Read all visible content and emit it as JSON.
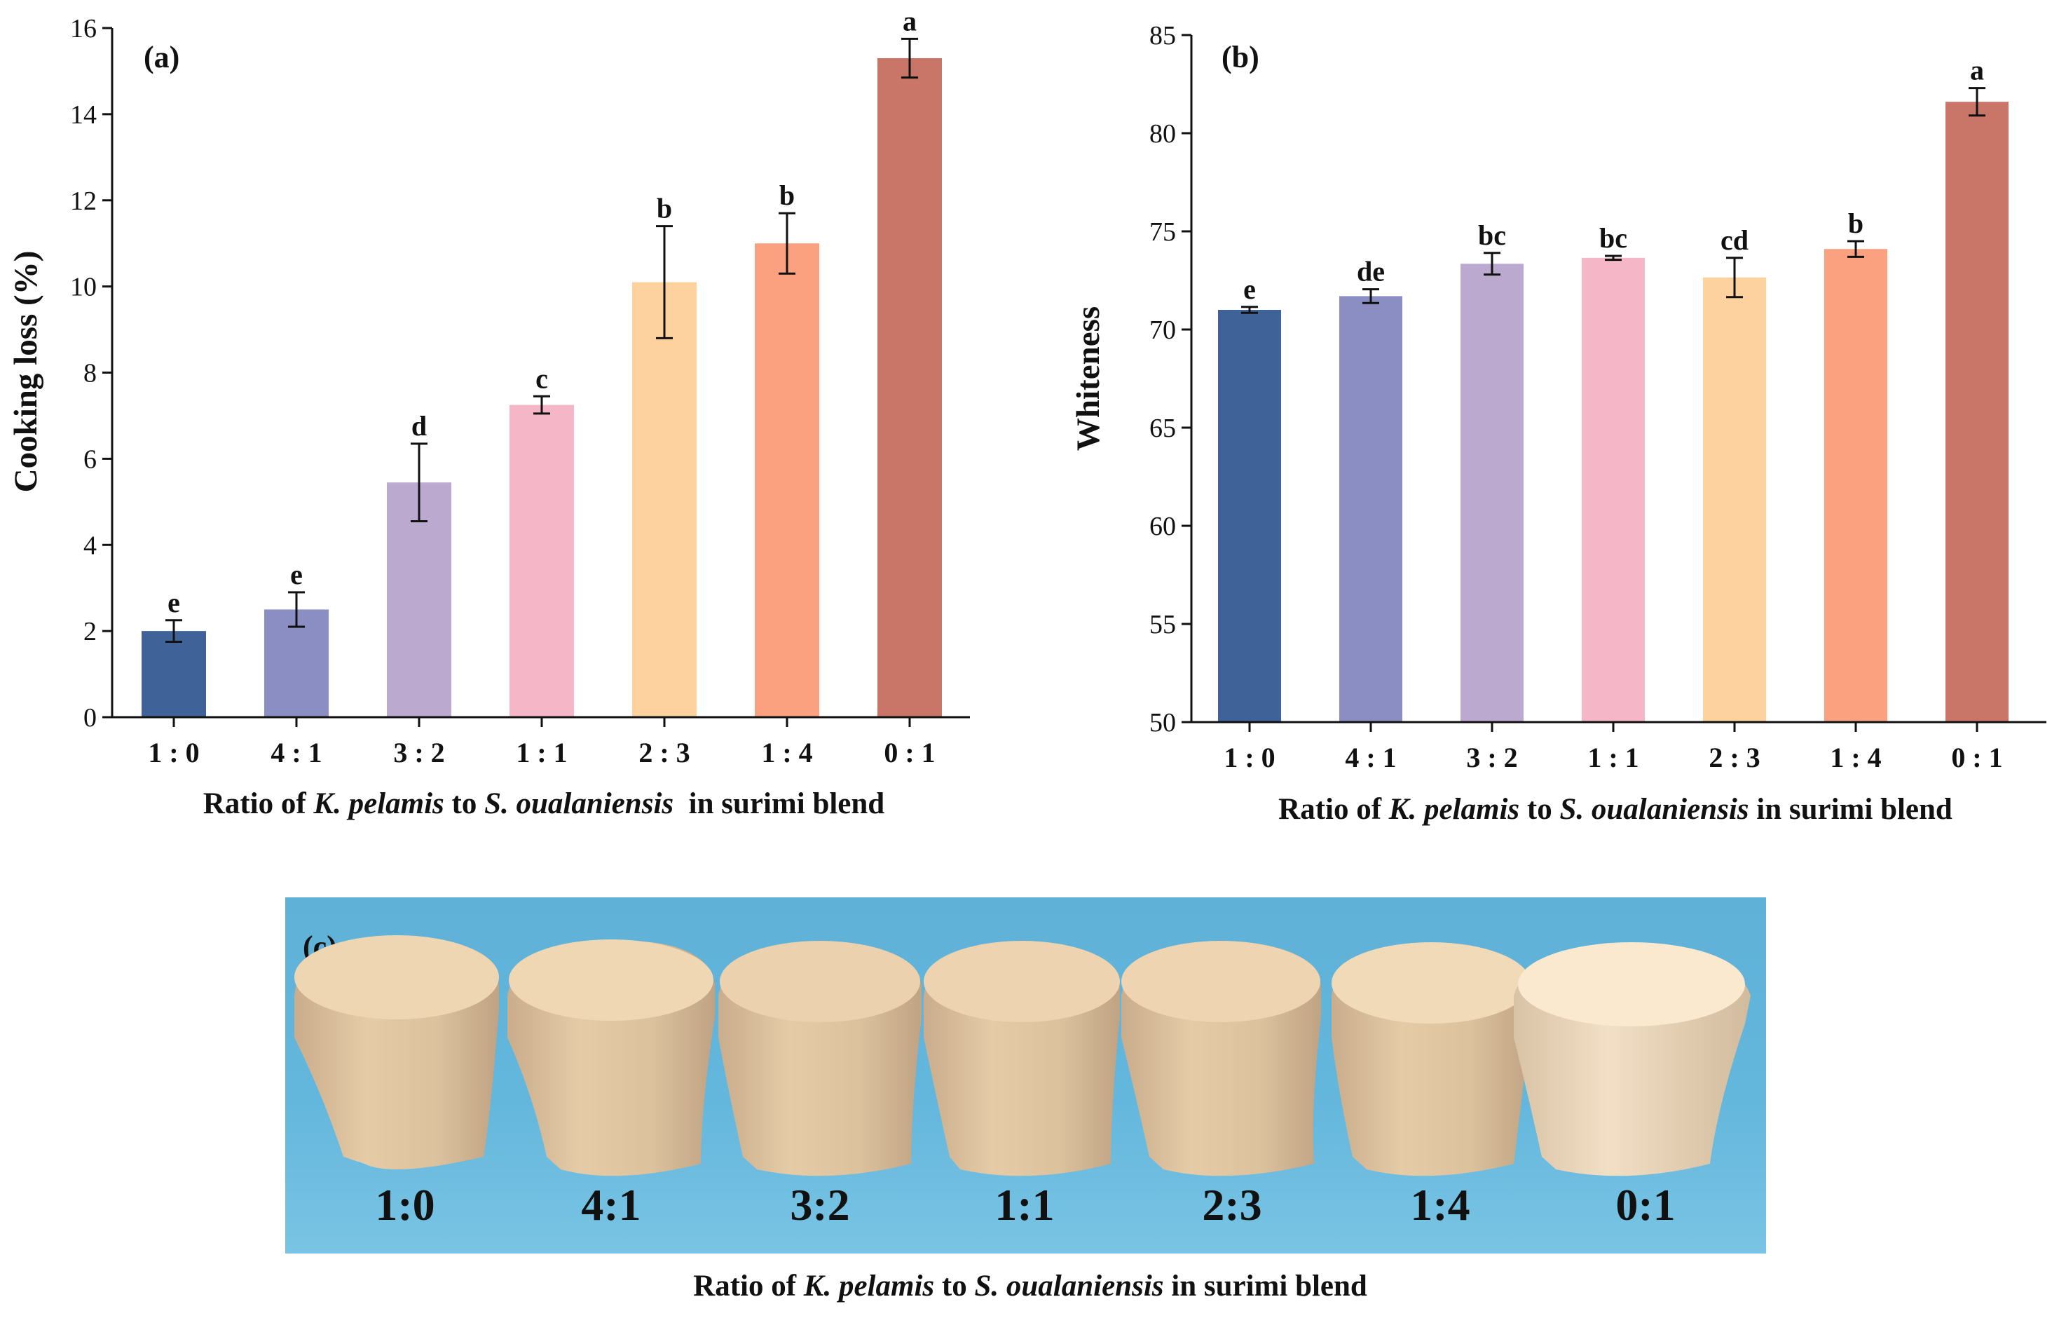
{
  "colors": [
    "#3f6399",
    "#8a8ec3",
    "#bca9d0",
    "#f5b7c8",
    "#fdd29f",
    "#fca17f",
    "#c97668"
  ],
  "chart_data": [
    {
      "type": "bar",
      "panel": "(a)",
      "ylabel": "Cooking loss (%)",
      "xlabel": {
        "pre": "Ratio of ",
        "sp1": "K. pelamis",
        "mid": " to ",
        "sp2": "S. oualaniensis",
        "post": "  in surimi blend"
      },
      "categories": [
        "1 : 0",
        "4 : 1",
        "3 : 2",
        "1 : 1",
        "2 : 3",
        "1 : 4",
        "0 : 1"
      ],
      "values": [
        2.0,
        2.5,
        5.45,
        7.25,
        10.1,
        11.0,
        15.3
      ],
      "errors": [
        0.25,
        0.4,
        0.9,
        0.2,
        1.3,
        0.7,
        0.45
      ],
      "letters": [
        "e",
        "e",
        "d",
        "c",
        "b",
        "b",
        "a"
      ],
      "ylim": [
        0,
        16
      ],
      "yticks": [
        "0",
        "2",
        "4",
        "6",
        "8",
        "10",
        "12",
        "14",
        "16"
      ]
    },
    {
      "type": "bar",
      "panel": "(b)",
      "ylabel": "Whiteness",
      "xlabel": {
        "pre": "Ratio of ",
        "sp1": "K. pelamis",
        "mid": " to ",
        "sp2": "S. oualaniensis",
        "post": " in surimi blend"
      },
      "categories": [
        "1 : 0",
        "4 : 1",
        "3 : 2",
        "1 : 1",
        "2 : 3",
        "1 : 4",
        "0 : 1"
      ],
      "values": [
        71.0,
        71.7,
        73.35,
        73.65,
        72.65,
        74.1,
        81.6
      ],
      "errors": [
        0.15,
        0.35,
        0.55,
        0.1,
        1.0,
        0.4,
        0.7
      ],
      "letters": [
        "e",
        "de",
        "bc",
        "bc",
        "cd",
        "b",
        "a"
      ],
      "ylim": [
        50,
        85
      ],
      "yticks": [
        "50",
        "55",
        "60",
        "65",
        "70",
        "75",
        "80",
        "85"
      ]
    }
  ],
  "photo": {
    "panel": "(c)",
    "labels": [
      "1:0",
      "4:1",
      "3:2",
      "1:1",
      "2:3",
      "1:4",
      "0:1"
    ],
    "caption": {
      "pre": "Ratio of ",
      "sp1": "K. pelamis",
      "mid": " to ",
      "sp2": "S. oualaniensis",
      "post": " in surimi blend"
    }
  }
}
